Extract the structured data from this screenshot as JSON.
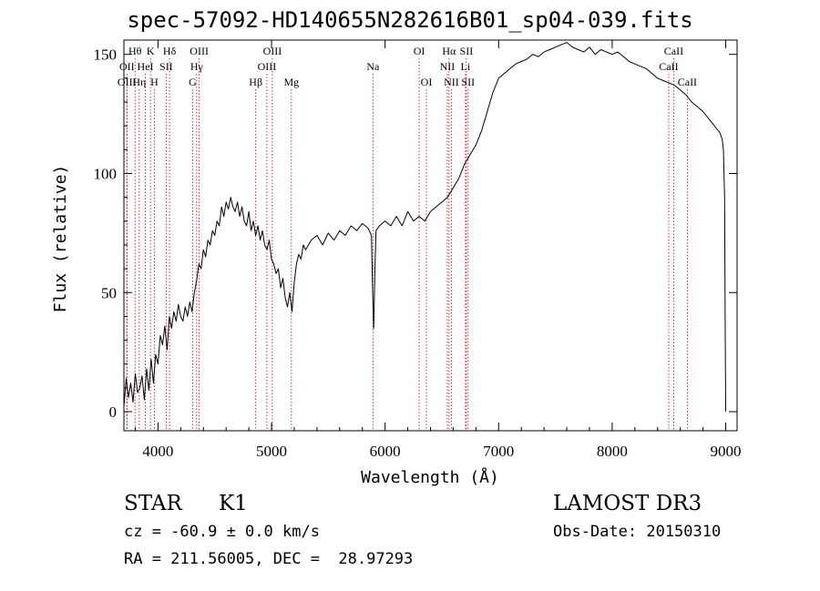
{
  "chart_data": {
    "type": "line",
    "title": "spec-57092-HD140655N282616B01_sp04-039.fits",
    "xlabel": "Wavelength (Å)",
    "ylabel": "Flux (relative)",
    "xlim": [
      3700,
      9100
    ],
    "ylim": [
      -8,
      156
    ],
    "xticks": [
      4000,
      5000,
      6000,
      7000,
      8000,
      9000
    ],
    "yticks": [
      0,
      50,
      100,
      150
    ],
    "grid": false,
    "series": [
      {
        "name": "spectrum",
        "x": [
          3700,
          3720,
          3740,
          3760,
          3780,
          3800,
          3820,
          3840,
          3860,
          3880,
          3900,
          3920,
          3940,
          3960,
          3980,
          4000,
          4020,
          4040,
          4060,
          4080,
          4100,
          4120,
          4140,
          4160,
          4180,
          4200,
          4220,
          4240,
          4260,
          4280,
          4300,
          4320,
          4340,
          4360,
          4380,
          4400,
          4420,
          4440,
          4460,
          4480,
          4500,
          4520,
          4540,
          4560,
          4580,
          4600,
          4620,
          4640,
          4660,
          4680,
          4700,
          4720,
          4740,
          4760,
          4780,
          4800,
          4820,
          4840,
          4860,
          4880,
          4900,
          4920,
          4940,
          4960,
          4980,
          5000,
          5020,
          5040,
          5060,
          5080,
          5100,
          5120,
          5140,
          5160,
          5180,
          5200,
          5220,
          5240,
          5260,
          5280,
          5300,
          5350,
          5400,
          5450,
          5500,
          5550,
          5600,
          5650,
          5700,
          5750,
          5800,
          5850,
          5880,
          5890,
          5900,
          5910,
          5920,
          5950,
          6000,
          6050,
          6100,
          6150,
          6200,
          6250,
          6300,
          6350,
          6400,
          6450,
          6500,
          6550,
          6600,
          6650,
          6700,
          6750,
          6800,
          6850,
          6900,
          6950,
          7000,
          7050,
          7100,
          7150,
          7200,
          7250,
          7300,
          7350,
          7400,
          7450,
          7500,
          7550,
          7600,
          7650,
          7700,
          7750,
          7800,
          7850,
          7900,
          7950,
          8000,
          8050,
          8100,
          8150,
          8200,
          8250,
          8300,
          8350,
          8400,
          8450,
          8500,
          8550,
          8600,
          8650,
          8700,
          8750,
          8800,
          8850,
          8900,
          8950,
          8970,
          8980,
          8990,
          8995,
          9000
        ],
        "y": [
          2,
          14,
          6,
          12,
          4,
          16,
          8,
          10,
          15,
          5,
          18,
          9,
          22,
          12,
          24,
          20,
          32,
          28,
          36,
          26,
          40,
          35,
          42,
          38,
          45,
          40,
          38,
          44,
          40,
          46,
          42,
          50,
          55,
          62,
          60,
          68,
          65,
          72,
          70,
          76,
          74,
          80,
          78,
          86,
          82,
          88,
          85,
          90,
          86,
          84,
          88,
          82,
          86,
          80,
          78,
          84,
          76,
          80,
          74,
          78,
          72,
          76,
          70,
          68,
          72,
          64,
          62,
          58,
          60,
          52,
          56,
          48,
          44,
          50,
          42,
          54,
          62,
          66,
          64,
          70,
          68,
          72,
          74,
          70,
          75,
          72,
          76,
          74,
          78,
          76,
          79,
          77,
          74,
          52,
          35,
          58,
          76,
          78,
          80,
          78,
          82,
          78,
          84,
          80,
          82,
          80,
          84,
          86,
          88,
          90,
          94,
          98,
          104,
          108,
          112,
          118,
          126,
          134,
          140,
          142,
          144,
          146,
          147,
          148,
          150,
          149,
          151,
          152,
          153,
          154,
          155,
          153,
          152,
          151,
          153,
          150,
          152,
          151,
          150,
          151,
          149,
          147,
          146,
          145,
          144,
          142,
          140,
          139,
          138,
          137,
          135,
          133,
          130,
          128,
          126,
          123,
          120,
          117,
          114,
          110,
          90,
          40,
          0
        ],
        "color": "#000000"
      }
    ],
    "line_color": "#cc0000",
    "spectral_lines": [
      {
        "label": "Hθ",
        "x": 3798,
        "row": 1
      },
      {
        "label": "OII",
        "x": 3727,
        "row": 2
      },
      {
        "label": "OIII",
        "x": 3726,
        "row": 3
      },
      {
        "label": "K",
        "x": 3934,
        "row": 1
      },
      {
        "label": "HeI",
        "x": 3889,
        "row": 2
      },
      {
        "label": "Hη",
        "x": 3835,
        "row": 3
      },
      {
        "label": "Hδ",
        "x": 4102,
        "row": 1
      },
      {
        "label": "SII",
        "x": 4072,
        "row": 2
      },
      {
        "label": "H",
        "x": 3968,
        "row": 3
      },
      {
        "label": "OIII",
        "x": 4363,
        "row": 1
      },
      {
        "label": "Hγ",
        "x": 4341,
        "row": 2
      },
      {
        "label": "G",
        "x": 4305,
        "row": 3
      },
      {
        "label": "OIII",
        "x": 5007,
        "row": 1
      },
      {
        "label": "OIII",
        "x": 4959,
        "row": 2
      },
      {
        "label": "Hβ",
        "x": 4861,
        "row": 3
      },
      {
        "label": "Mg",
        "x": 5175,
        "row": 3
      },
      {
        "label": "Na",
        "x": 5893,
        "row": 2
      },
      {
        "label": "OI",
        "x": 6300,
        "row": 1
      },
      {
        "label": "OI",
        "x": 6364,
        "row": 3
      },
      {
        "label": "Hα",
        "x": 6563,
        "row": 1
      },
      {
        "label": "SII",
        "x": 6716,
        "row": 1
      },
      {
        "label": "NII",
        "x": 6548,
        "row": 2
      },
      {
        "label": "Li",
        "x": 6708,
        "row": 2
      },
      {
        "label": "NII",
        "x": 6584,
        "row": 3
      },
      {
        "label": "SII",
        "x": 6731,
        "row": 3
      },
      {
        "label": "CaII",
        "x": 8542,
        "row": 1
      },
      {
        "label": "CaII",
        "x": 8498,
        "row": 2
      },
      {
        "label": "CaII",
        "x": 8662,
        "row": 3
      }
    ]
  },
  "info": {
    "object_class": "STAR",
    "subclass": "K1",
    "survey": "LAMOST DR3",
    "cz": "cz = -60.9 ± 0.0 km/s",
    "obs_date": "Obs-Date: 20150310",
    "coords": "RA = 211.56005, DEC =  28.97293"
  }
}
